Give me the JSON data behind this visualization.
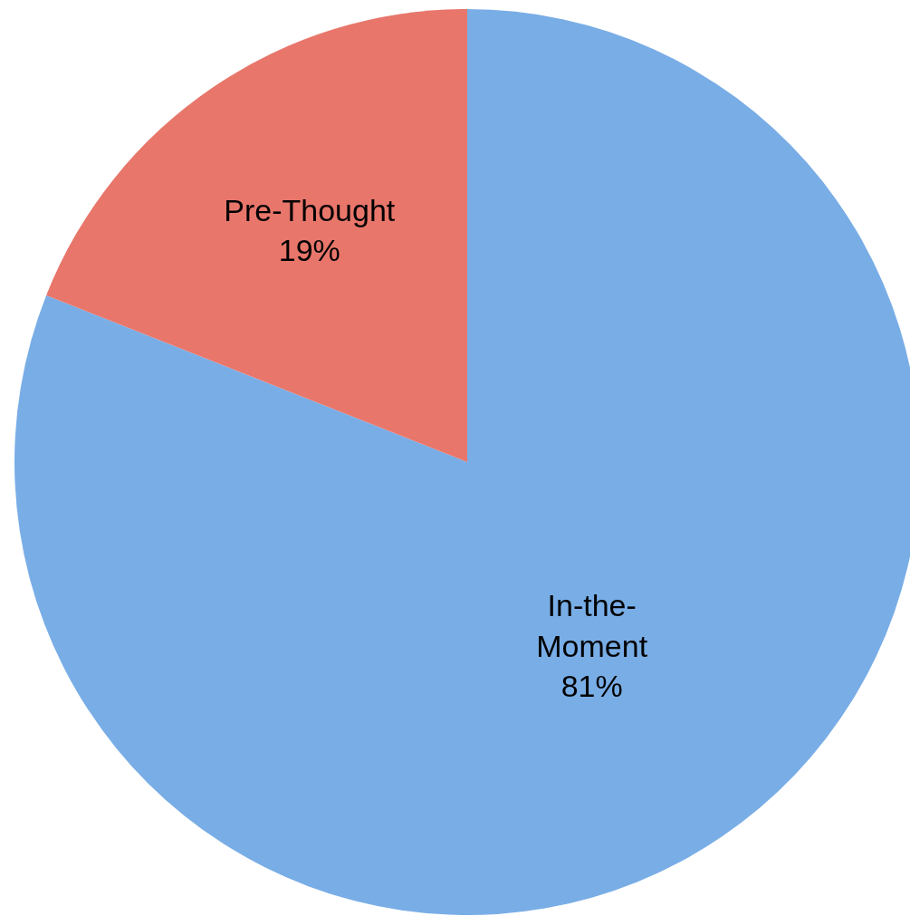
{
  "chart_data": {
    "type": "pie",
    "categories": [
      "In-the-Moment",
      "Pre-Thought"
    ],
    "values": [
      81,
      19
    ],
    "value_labels": [
      "81%",
      "19%"
    ],
    "colors": [
      "#79ade6",
      "#e8766b"
    ]
  }
}
